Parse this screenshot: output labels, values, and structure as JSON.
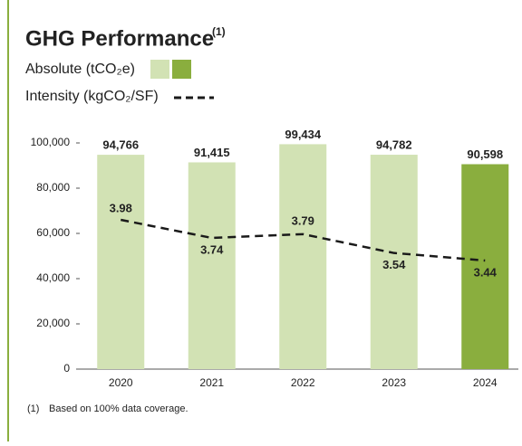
{
  "chart_data": {
    "type": "bar",
    "title": "GHG Performance",
    "title_note": "(1)",
    "categories": [
      "2020",
      "2021",
      "2022",
      "2023",
      "2024"
    ],
    "series": [
      {
        "name": "Absolute (tCO₂e)",
        "type": "bar",
        "colors": [
          "#d2e2b4",
          "#d2e2b4",
          "#d2e2b4",
          "#d2e2b4",
          "#8aae3e"
        ],
        "values": [
          94766,
          91415,
          99434,
          94782,
          90598
        ],
        "value_labels": [
          "94,766",
          "91,415",
          "99,434",
          "94,782",
          "90,598"
        ]
      },
      {
        "name": "Intensity (kgCO₂/SF)",
        "type": "line",
        "axis": "y2",
        "color": "#1a1a1a",
        "dashed": true,
        "values": [
          3.98,
          3.74,
          3.79,
          3.54,
          3.44
        ]
      }
    ],
    "ylim": [
      0,
      100000
    ],
    "yticks": [
      0,
      {
        "value": 20000,
        "label": "20,000"
      },
      {
        "value": 40000,
        "label": "40,000"
      },
      {
        "value": 60000,
        "label": "60,000"
      },
      {
        "value": 80000,
        "label": "80,000"
      },
      {
        "value": 100000,
        "label": "100,000"
      }
    ],
    "y2lim": [
      2,
      5
    ],
    "footnote_marker": "(1)",
    "footnote": "Based on 100% data coverage."
  }
}
